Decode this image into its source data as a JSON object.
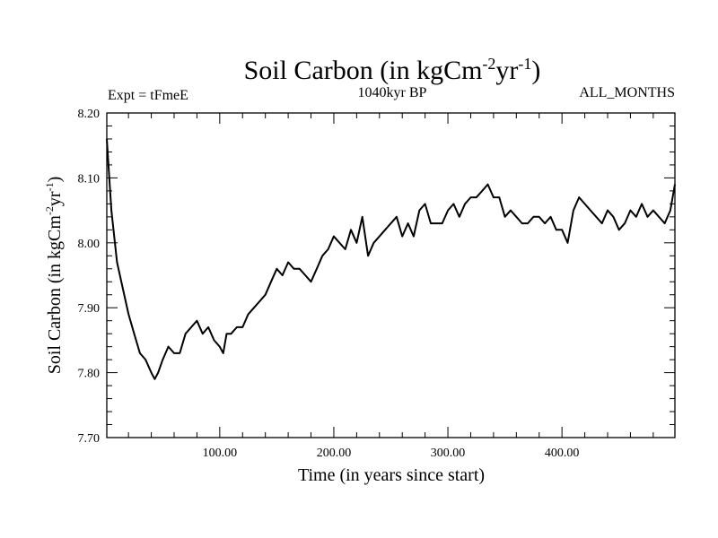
{
  "chart_data": {
    "type": "line",
    "title_main": "Soil Carbon (in kgCm",
    "title_sup1": "-2",
    "title_mid": "yr",
    "title_sup2": "-1",
    "title_end": ")",
    "left_subtitle": "Expt = tFmeE",
    "center_subtitle": "1040kyr BP",
    "right_subtitle": "ALL_MONTHS",
    "xlabel": "Time (in years since start)",
    "ylabel_main": "Soil Carbon (in kgCm",
    "ylabel_sup1": "-2",
    "ylabel_mid": "yr",
    "ylabel_sup2": "-1",
    "ylabel_end": ")",
    "xlim": [
      1,
      499
    ],
    "ylim": [
      7.7,
      8.2
    ],
    "x_ticks": [
      100,
      200,
      300,
      400
    ],
    "x_tick_labels": [
      "100.00",
      "200.00",
      "300.00",
      "400.00"
    ],
    "y_ticks": [
      7.7,
      7.8,
      7.9,
      8.0,
      8.1,
      8.2
    ],
    "y_tick_labels": [
      "7.70",
      "7.80",
      "7.90",
      "8.00",
      "8.10",
      "8.20"
    ],
    "line_color": "#000000",
    "series": [
      {
        "name": "Soil Carbon",
        "x": [
          1,
          5,
          10,
          15,
          20,
          25,
          30,
          35,
          40,
          43,
          46,
          50,
          55,
          60,
          65,
          70,
          75,
          80,
          85,
          90,
          95,
          100,
          103,
          106,
          110,
          115,
          120,
          125,
          130,
          135,
          140,
          145,
          150,
          155,
          160,
          165,
          170,
          175,
          180,
          185,
          190,
          195,
          200,
          205,
          210,
          215,
          220,
          225,
          230,
          235,
          240,
          245,
          250,
          255,
          260,
          265,
          270,
          275,
          280,
          285,
          290,
          295,
          300,
          305,
          310,
          315,
          320,
          325,
          330,
          335,
          340,
          345,
          350,
          355,
          360,
          365,
          370,
          375,
          380,
          385,
          390,
          395,
          400,
          405,
          410,
          415,
          420,
          425,
          430,
          435,
          440,
          445,
          450,
          455,
          460,
          465,
          470,
          475,
          480,
          485,
          490,
          495,
          499
        ],
        "y": [
          8.16,
          8.05,
          7.97,
          7.93,
          7.89,
          7.86,
          7.83,
          7.82,
          7.8,
          7.79,
          7.8,
          7.82,
          7.84,
          7.83,
          7.83,
          7.86,
          7.87,
          7.88,
          7.86,
          7.87,
          7.85,
          7.84,
          7.83,
          7.86,
          7.86,
          7.87,
          7.87,
          7.89,
          7.9,
          7.91,
          7.92,
          7.94,
          7.96,
          7.95,
          7.97,
          7.96,
          7.96,
          7.95,
          7.94,
          7.96,
          7.98,
          7.99,
          8.01,
          8.0,
          7.99,
          8.02,
          8.0,
          8.04,
          7.98,
          8.0,
          8.01,
          8.02,
          8.03,
          8.04,
          8.01,
          8.03,
          8.01,
          8.05,
          8.06,
          8.03,
          8.03,
          8.03,
          8.05,
          8.06,
          8.04,
          8.06,
          8.07,
          8.07,
          8.08,
          8.09,
          8.07,
          8.07,
          8.04,
          8.05,
          8.04,
          8.03,
          8.03,
          8.04,
          8.04,
          8.03,
          8.04,
          8.02,
          8.02,
          8.0,
          8.05,
          8.07,
          8.06,
          8.05,
          8.04,
          8.03,
          8.05,
          8.04,
          8.02,
          8.03,
          8.05,
          8.04,
          8.06,
          8.04,
          8.05,
          8.04,
          8.03,
          8.05,
          8.09
        ]
      }
    ]
  }
}
